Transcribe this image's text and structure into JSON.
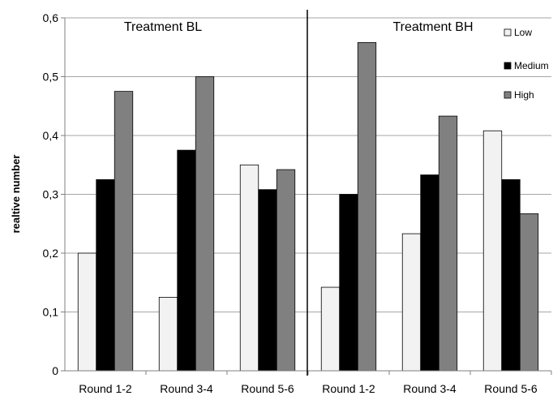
{
  "chart_data": {
    "type": "bar",
    "title": "",
    "xlabel": "",
    "ylabel": "realtive number",
    "ylim": [
      0,
      0.6
    ],
    "yticks": [
      "0",
      "0,1",
      "0,2",
      "0,3",
      "0,4",
      "0,5",
      "0,6"
    ],
    "ytick_values": [
      0,
      0.1,
      0.2,
      0.3,
      0.4,
      0.5,
      0.6
    ],
    "grid": true,
    "legend_position": "top-right",
    "categories": [
      "Round 1-2",
      "Round 3-4",
      "Round 5-6",
      "Round 1-2",
      "Round 3-4",
      "Round 5-6"
    ],
    "panels": [
      {
        "label": "Treatment BL",
        "categories": [
          "Round 1-2",
          "Round 3-4",
          "Round 5-6"
        ]
      },
      {
        "label": "Treatment BH",
        "categories": [
          "Round 1-2",
          "Round 3-4",
          "Round 5-6"
        ]
      }
    ],
    "series": [
      {
        "name": "Low",
        "color": "#f2f2f2",
        "values": [
          0.2,
          0.125,
          0.35,
          0.142,
          0.233,
          0.408
        ]
      },
      {
        "name": "Medium",
        "color": "#000000",
        "values": [
          0.325,
          0.375,
          0.308,
          0.3,
          0.333,
          0.325
        ]
      },
      {
        "name": "High",
        "color": "#808080",
        "values": [
          0.475,
          0.5,
          0.342,
          0.558,
          0.433,
          0.267
        ]
      }
    ]
  }
}
